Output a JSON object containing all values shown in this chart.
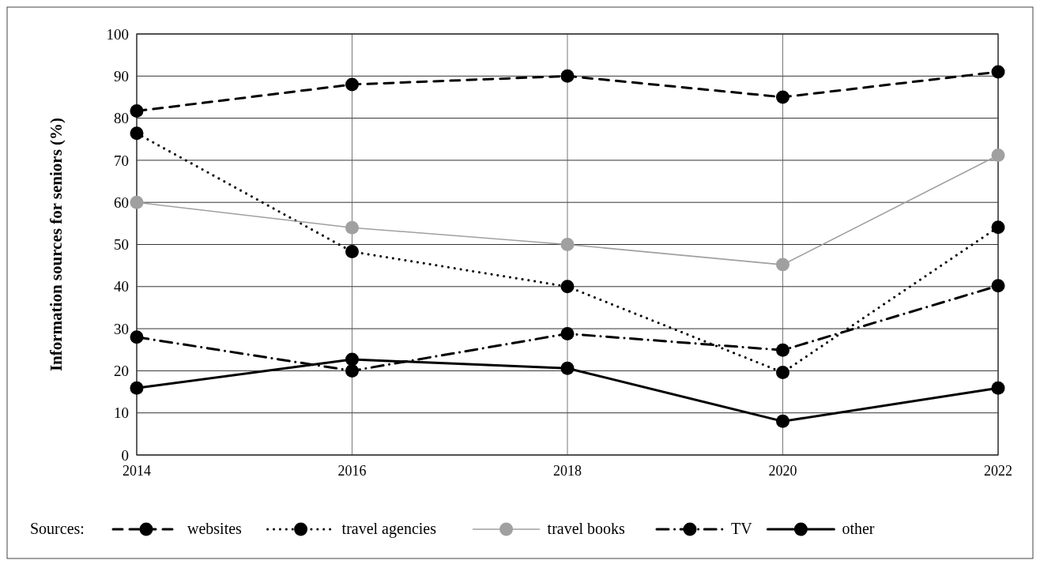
{
  "chart_data": {
    "type": "line",
    "x": [
      2014,
      2016,
      2018,
      2020,
      2022
    ],
    "xlim": [
      2014,
      2022
    ],
    "xticks": [
      2014,
      2016,
      2018,
      2020,
      2022
    ],
    "ylim": [
      0,
      100
    ],
    "yticks": [
      0,
      10,
      20,
      30,
      40,
      50,
      60,
      70,
      80,
      90,
      100
    ],
    "ylabel": "Information sources for seniors (%)",
    "legend_title": "Sources:",
    "legend": "bottom",
    "grid": true,
    "marker": "circle",
    "series": [
      {
        "name": "websites",
        "color": "#000000",
        "line_style": "dashed",
        "values": [
          81.7,
          88,
          90,
          85,
          91
        ]
      },
      {
        "name": "travel agencies",
        "color": "#000000",
        "line_style": "dotted",
        "values": [
          76.4,
          48.3,
          40,
          19.6,
          54.1
        ]
      },
      {
        "name": "travel books",
        "color": "#a0a0a0",
        "line_style": "solid",
        "values": [
          60,
          54,
          50,
          45.2,
          71.2
        ]
      },
      {
        "name": "TV",
        "color": "#000000",
        "line_style": "dashdot",
        "values": [
          28,
          20,
          28.8,
          24.9,
          40.2
        ]
      },
      {
        "name": "other",
        "color": "#000000",
        "line_style": "solid",
        "values": [
          15.9,
          22.7,
          20.6,
          8,
          15.9
        ]
      }
    ]
  }
}
